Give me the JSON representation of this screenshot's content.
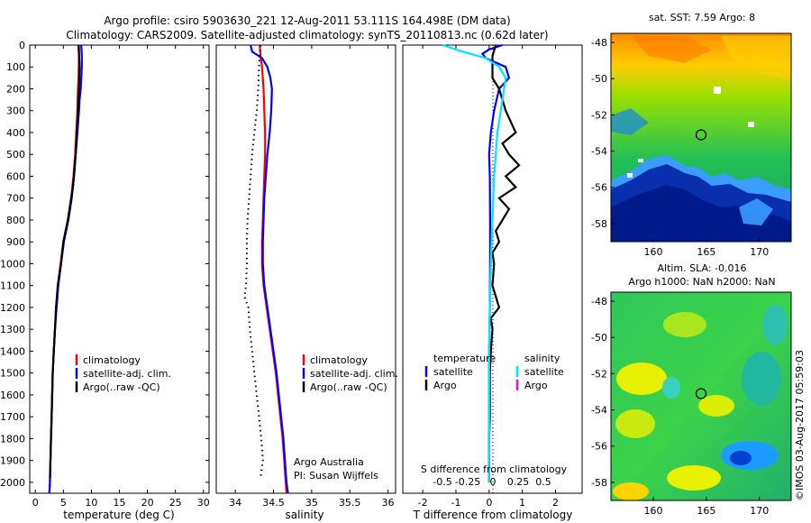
{
  "header": {
    "title_line1": "Argo profile: csiro 5903630_221 12-Aug-2011 53.111S 164.498E (DM data)",
    "title_line2": "Climatology: CARS2009. Satellite-adjusted climatology: synTS_20110813.nc (0.62d later)"
  },
  "colors": {
    "climatology": "#ff0000",
    "satellite": "#0000ff",
    "argo": "#000000",
    "salinity_satellite": "#00e5ff",
    "salinity_argo": "#ff00ff"
  },
  "depth_axis": {
    "ticks": [
      0,
      100,
      200,
      300,
      400,
      500,
      600,
      700,
      800,
      900,
      1000,
      1100,
      1200,
      1300,
      1400,
      1500,
      1600,
      1700,
      1800,
      1900,
      2000
    ],
    "range": [
      0,
      2050
    ]
  },
  "chart_data": [
    {
      "type": "line",
      "xlabel": "temperature (deg C)",
      "xlim": [
        -1,
        31
      ],
      "xticks": [
        0,
        5,
        10,
        15,
        20,
        25,
        30
      ],
      "legend": [
        "climatology",
        "satellite-adj. clim.",
        "Argo(..raw -QC)"
      ],
      "legend_colors": [
        "#ff0000",
        "#0000ff",
        "#000000"
      ],
      "series": [
        {
          "name": "climatology",
          "color": "#ff0000",
          "depth": [
            0,
            50,
            100,
            150,
            200,
            250,
            300,
            400,
            500,
            600,
            700,
            800,
            900,
            1000,
            1100,
            1200,
            1300,
            1400,
            1500,
            1600,
            1700,
            1800,
            1900,
            2000,
            2050
          ],
          "values": [
            7.8,
            7.8,
            7.75,
            7.7,
            7.6,
            7.55,
            7.5,
            7.3,
            7.1,
            6.8,
            6.4,
            5.8,
            5.0,
            4.5,
            4.0,
            3.7,
            3.5,
            3.3,
            3.1,
            3.0,
            2.9,
            2.8,
            2.7,
            2.6,
            2.5
          ]
        },
        {
          "name": "satellite-adj. clim.",
          "color": "#0000ff",
          "depth": [
            0,
            50,
            100,
            150,
            200,
            250,
            300,
            400,
            500,
            600,
            700,
            800,
            900,
            1000,
            1100,
            1200,
            1300,
            1400,
            1500,
            1600,
            1700,
            1800,
            1900,
            2000,
            2050
          ],
          "values": [
            8.2,
            8.3,
            8.3,
            8.2,
            8.1,
            7.9,
            7.8,
            7.5,
            7.2,
            6.9,
            6.5,
            5.9,
            5.1,
            4.6,
            4.1,
            3.8,
            3.5,
            3.3,
            3.1,
            3.0,
            2.9,
            2.8,
            2.7,
            2.6,
            2.5
          ]
        },
        {
          "name": "Argo(..raw -QC)",
          "color": "#000000",
          "depth": [
            0,
            50,
            100,
            150,
            200,
            250,
            300,
            400,
            500,
            600,
            650,
            700,
            800,
            900,
            1000,
            1100,
            1200,
            1300,
            1400,
            1500,
            1600,
            1700,
            1800,
            1900,
            1980
          ],
          "values": [
            7.7,
            7.8,
            7.9,
            7.85,
            7.8,
            7.7,
            7.6,
            7.4,
            7.2,
            6.9,
            6.7,
            6.4,
            5.8,
            5.0,
            4.6,
            4.0,
            3.7,
            3.5,
            3.3,
            3.1,
            3.0,
            2.9,
            2.8,
            2.7,
            2.6
          ]
        }
      ]
    },
    {
      "type": "line",
      "xlabel": "salinity",
      "xlim": [
        33.75,
        36.1
      ],
      "xticks": [
        34,
        34.5,
        35,
        35.5,
        36
      ],
      "xtick_labels": [
        "34",
        "34.5",
        "35",
        "35.5",
        "36"
      ],
      "legend": [
        "climatology",
        "satellite-adj. clim.",
        "Argo(..raw -QC)"
      ],
      "legend_colors": [
        "#ff0000",
        "#0000ff",
        "#000000"
      ],
      "annotation_line1": "Argo Australia",
      "annotation_line2": "PI: Susan Wijffels",
      "series": [
        {
          "name": "climatology",
          "color": "#ff0000",
          "depth": [
            0,
            50,
            100,
            200,
            300,
            400,
            500,
            600,
            700,
            800,
            900,
            1000,
            1100,
            1200,
            1300,
            1400,
            1500,
            1600,
            1700,
            1800,
            1900,
            2000,
            2050
          ],
          "values": [
            34.32,
            34.33,
            34.35,
            34.37,
            34.38,
            34.39,
            34.39,
            34.38,
            34.37,
            34.36,
            34.35,
            34.35,
            34.37,
            34.41,
            34.45,
            34.49,
            34.53,
            34.56,
            34.59,
            34.62,
            34.64,
            34.66,
            34.67
          ]
        },
        {
          "name": "satellite-adj. clim.",
          "color": "#0000ff",
          "depth": [
            0,
            30,
            60,
            100,
            150,
            200,
            300,
            400,
            500,
            600,
            700,
            800,
            900,
            1000,
            1100,
            1200,
            1300,
            1400,
            1500,
            1600,
            1700,
            1800,
            1900,
            2000,
            2050
          ],
          "values": [
            34.2,
            34.22,
            34.35,
            34.42,
            34.46,
            34.48,
            34.47,
            34.45,
            34.42,
            34.4,
            34.38,
            34.37,
            34.36,
            34.36,
            34.38,
            34.42,
            34.46,
            34.5,
            34.54,
            34.57,
            34.6,
            34.63,
            34.65,
            34.67,
            34.69
          ]
        },
        {
          "name": "Argo(..raw -QC)",
          "color": "#000000",
          "depth": [
            0,
            50,
            100,
            200,
            300,
            400,
            500,
            600,
            700,
            800,
            900,
            1000,
            1100,
            1150,
            1200,
            1300,
            1400,
            1500,
            1600,
            1700,
            1800,
            1900,
            1950,
            1980
          ],
          "values": [
            34.33,
            34.32,
            34.31,
            34.3,
            34.28,
            34.25,
            34.22,
            34.2,
            34.18,
            34.16,
            34.15,
            34.15,
            34.14,
            34.12,
            34.17,
            34.19,
            34.22,
            34.25,
            34.28,
            34.31,
            34.34,
            34.36,
            34.34,
            34.33
          ]
        }
      ]
    },
    {
      "type": "line",
      "xlabel": "T difference from climatology",
      "xlim": [
        -2.6,
        2.8
      ],
      "xticks": [
        -2,
        -1,
        0,
        1,
        2
      ],
      "top_label": "S difference from climatology",
      "top_ticks": [
        -0.5,
        -0.25,
        0,
        0.25,
        0.5
      ],
      "top_tick_labels": [
        "-0.5",
        "-0.25",
        "0",
        "0.25",
        "0.5"
      ],
      "legend_left_title": "temperature",
      "legend_left": [
        "satellite",
        "Argo"
      ],
      "legend_right_title": "salinity",
      "legend_right": [
        "satellite",
        "Argo"
      ],
      "series": [
        {
          "name": "satellite",
          "color": "#0000ff",
          "depth": [
            0,
            20,
            40,
            60,
            80,
            100,
            150,
            200,
            300,
            400,
            500,
            600,
            800,
            1000,
            1200,
            1400,
            1600,
            1800,
            2000
          ],
          "values": [
            0.4,
            0.0,
            -0.2,
            -0.1,
            0.2,
            0.5,
            0.6,
            0.3,
            0.15,
            0.05,
            0.0,
            0.02,
            0.03,
            0.03,
            0.02,
            0.0,
            0.0,
            0.0,
            0.0
          ]
        },
        {
          "name": "Argo",
          "color": "#000000",
          "depth": [
            0,
            50,
            100,
            150,
            200,
            300,
            400,
            450,
            500,
            550,
            600,
            650,
            700,
            750,
            800,
            850,
            900,
            950,
            1000,
            1100,
            1200,
            1250,
            1300,
            1400,
            1500,
            1600,
            1700,
            1800,
            1900,
            2000
          ],
          "values": [
            0.2,
            0.1,
            0.1,
            0.1,
            0.3,
            0.5,
            0.8,
            0.4,
            0.6,
            0.9,
            0.5,
            0.8,
            0.3,
            0.6,
            0.4,
            0.2,
            0.3,
            0.1,
            0.15,
            0.1,
            0.3,
            0.05,
            0.1,
            0.05,
            0.02,
            0.02,
            0.02,
            0.0,
            0.0,
            0.0
          ]
        },
        {
          "name": "satellite",
          "color": "#00e5ff",
          "depth": [
            0,
            30,
            60,
            100,
            150,
            200,
            300,
            400,
            500,
            600,
            800,
            1000,
            1200,
            1400,
            1600,
            1800,
            2000
          ],
          "values": [
            -1.4,
            -0.8,
            -0.1,
            0.3,
            0.5,
            0.45,
            0.35,
            0.25,
            0.2,
            0.15,
            0.1,
            0.05,
            0.02,
            0.0,
            0.0,
            0.0,
            0.0
          ]
        },
        {
          "name": "Argo",
          "color": "#ff00ff",
          "depth": [],
          "values": []
        }
      ]
    },
    {
      "type": "heatmap",
      "title": "sat. SST: 7.59 Argo: 8",
      "xticks": [
        160,
        165,
        170
      ],
      "yticks": [
        -48,
        -50,
        -52,
        -54,
        -56,
        -58
      ],
      "xlim": [
        156,
        173
      ],
      "ylim": [
        -59,
        -47.5
      ],
      "marker": {
        "lon": 164.5,
        "lat": -53.1
      }
    },
    {
      "type": "heatmap",
      "title_line1": "Altim. SLA: -0.016",
      "title_line2": "Argo h1000: NaN h2000: NaN",
      "xticks": [
        160,
        165,
        170
      ],
      "yticks": [
        -48,
        -50,
        -52,
        -54,
        -56,
        -58
      ],
      "xlim": [
        156,
        173
      ],
      "ylim": [
        -59,
        -47.5
      ],
      "marker": {
        "lon": 164.5,
        "lat": -53.1
      }
    }
  ],
  "credit": "©IMOS 03-Aug-2017 05:59:03"
}
